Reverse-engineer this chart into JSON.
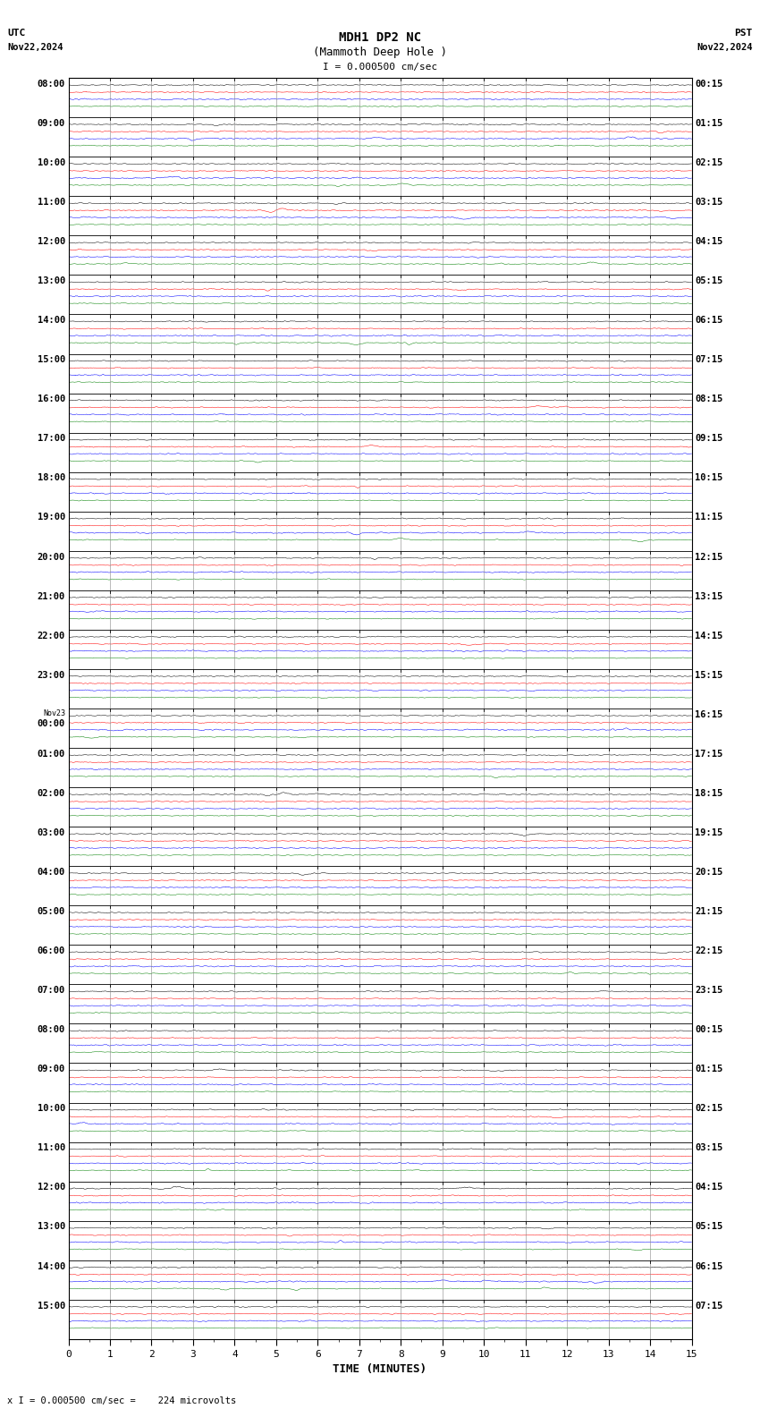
{
  "title_line1": "MDH1 DP2 NC",
  "title_line2": "(Mammoth Deep Hole )",
  "scale_label": "I = 0.000500 cm/sec",
  "utc_label": "UTC",
  "utc_date": "Nov22,2024",
  "pst_label": "PST",
  "pst_date": "Nov22,2024",
  "bottom_label": "x I = 0.000500 cm/sec =    224 microvolts",
  "xlabel": "TIME (MINUTES)",
  "bg_color": "#ffffff",
  "trace_colors": [
    "#000000",
    "#ff0000",
    "#0000ff",
    "#008000"
  ],
  "grid_color": "#888888",
  "n_rows": 32,
  "minutes_per_row": 15,
  "x_ticks": [
    0,
    1,
    2,
    3,
    4,
    5,
    6,
    7,
    8,
    9,
    10,
    11,
    12,
    13,
    14,
    15
  ],
  "left_times_utc": [
    "08:00",
    "09:00",
    "10:00",
    "11:00",
    "12:00",
    "13:00",
    "14:00",
    "15:00",
    "16:00",
    "17:00",
    "18:00",
    "19:00",
    "20:00",
    "21:00",
    "22:00",
    "23:00",
    "Nov23\n00:00",
    "01:00",
    "02:00",
    "03:00",
    "04:00",
    "05:00",
    "06:00",
    "07:00",
    "08:00",
    "09:00",
    "10:00",
    "11:00",
    "12:00",
    "13:00",
    "14:00",
    "15:00"
  ],
  "right_times_pst": [
    "00:15",
    "01:15",
    "02:15",
    "03:15",
    "04:15",
    "05:15",
    "06:15",
    "07:15",
    "08:15",
    "09:15",
    "10:15",
    "11:15",
    "12:15",
    "13:15",
    "14:15",
    "15:15",
    "16:15",
    "17:15",
    "18:15",
    "19:15",
    "20:15",
    "21:15",
    "22:15",
    "23:15",
    "00:15",
    "01:15",
    "02:15",
    "03:15",
    "04:15",
    "05:15",
    "06:15",
    "07:15"
  ]
}
